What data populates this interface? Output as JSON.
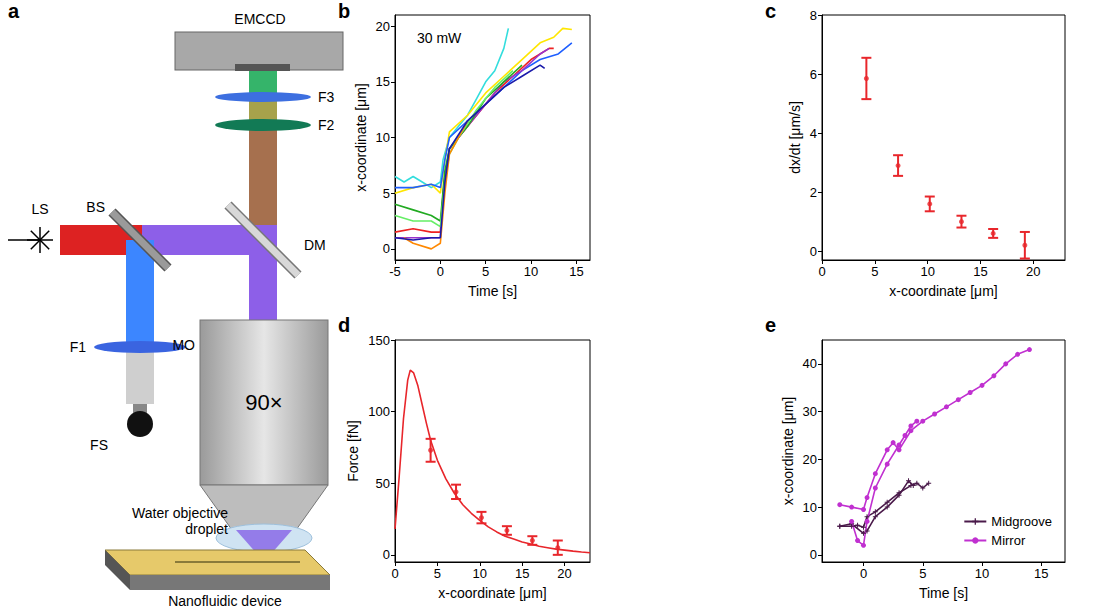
{
  "diagram": {
    "label": "a",
    "camera": "EMCCD",
    "filter_3": "F3",
    "filter_2": "F2",
    "light_source": "LS",
    "beam_splitter": "BS",
    "dichroic_mirror": "DM",
    "filter_1": "F1",
    "objective": "MO",
    "magnification": "90×",
    "field_source": "FS",
    "droplet": "Water objective droplet",
    "device": "Nanofluidic device"
  },
  "chart_data": [
    {
      "label": "b",
      "type": "line",
      "xlabel": "Time [s]",
      "ylabel": "x-coordinate [μm]",
      "xlim": [
        -5,
        16.5
      ],
      "ylim": [
        -1,
        21
      ],
      "xticks": [
        -5,
        0,
        5,
        10,
        15
      ],
      "yticks": [
        0,
        5,
        10,
        15,
        20
      ],
      "grid": false,
      "annotations": [
        "30 mW"
      ],
      "series": [
        {
          "color": "#33dddd",
          "x": [
            -5,
            -4,
            -3,
            -2,
            -1,
            0,
            0.3,
            1,
            2,
            3,
            4,
            5,
            6,
            7,
            7.5
          ],
          "values": [
            6.5,
            6,
            6.5,
            6,
            5.5,
            6,
            8,
            10,
            11,
            12,
            13.5,
            15,
            16,
            18,
            19.8
          ]
        },
        {
          "color": "#ffe600",
          "x": [
            -5,
            -3,
            -1,
            0,
            0.5,
            1,
            3,
            5,
            7,
            9,
            11,
            12.5,
            13.5,
            14.5
          ],
          "values": [
            5,
            5.5,
            5.8,
            5,
            8,
            10.5,
            12,
            14,
            15.5,
            17,
            18.5,
            19,
            19.8,
            19.7
          ]
        },
        {
          "color": "#1f5fff",
          "x": [
            -5,
            -3,
            -1,
            0,
            0.5,
            1,
            3,
            5,
            7,
            9,
            11,
            13,
            14.5
          ],
          "values": [
            5.5,
            5.5,
            5.8,
            5.5,
            8,
            10,
            11.5,
            13,
            14.5,
            16,
            17,
            17.5,
            18.5
          ]
        },
        {
          "color": "#ee2222",
          "x": [
            -5,
            -3,
            -1,
            0,
            0.3,
            1,
            2,
            4,
            6,
            8,
            10,
            12,
            12.5
          ],
          "values": [
            1.5,
            1.8,
            1.5,
            1.5,
            5,
            9,
            10,
            12,
            14,
            15.5,
            17,
            18,
            18
          ]
        },
        {
          "color": "#9933cc",
          "x": [
            -5,
            -3,
            -1,
            0,
            0.4,
            1,
            3,
            5,
            7,
            9,
            11,
            12
          ],
          "values": [
            1,
            1,
            1,
            1,
            6,
            9,
            11,
            13,
            15,
            16,
            17.5,
            18
          ]
        },
        {
          "color": "#22aa22",
          "x": [
            -5,
            -3,
            -1,
            0,
            0.5,
            1,
            3,
            5,
            7,
            9
          ],
          "values": [
            4,
            3.5,
            3,
            2.5,
            7,
            9,
            11,
            13.5,
            15,
            16.5
          ]
        },
        {
          "color": "#66ee66",
          "x": [
            -5,
            -3,
            -1,
            0,
            0.5,
            1,
            2,
            4,
            6,
            8
          ],
          "values": [
            3,
            2.5,
            2.5,
            2,
            6,
            8.5,
            10,
            12.5,
            14.5,
            16
          ]
        },
        {
          "color": "#ff8800",
          "x": [
            -4,
            -3,
            -1,
            0,
            0.5,
            1,
            2,
            3
          ],
          "values": [
            1,
            0.5,
            0,
            0.5,
            5,
            8.5,
            10,
            11.5
          ]
        },
        {
          "color": "#1a1aaa",
          "x": [
            -5,
            -3,
            -1,
            0,
            0.5,
            1,
            3,
            5,
            7,
            9,
            11,
            11.5
          ],
          "values": [
            1,
            0.8,
            1,
            1,
            6,
            9,
            11.5,
            13,
            14.5,
            15.5,
            16.5,
            16.2
          ]
        }
      ]
    },
    {
      "label": "c",
      "type": "scatter",
      "xlabel": "x-coordinate [μm]",
      "ylabel": "dx/dt [μm/s]",
      "xlim": [
        0,
        23
      ],
      "ylim": [
        -0.3,
        8
      ],
      "xticks": [
        0,
        5,
        10,
        15,
        20
      ],
      "yticks": [
        0,
        2,
        4,
        6,
        8
      ],
      "grid": false,
      "series": [
        {
          "color": "#e8262b",
          "marker": "circle",
          "x": [
            4.2,
            7.2,
            10.2,
            13.2,
            16.2,
            19.2
          ],
          "values": [
            5.85,
            2.9,
            1.6,
            1.0,
            0.6,
            0.2
          ],
          "errors": [
            0.7,
            0.35,
            0.25,
            0.2,
            0.15,
            0.45
          ]
        }
      ]
    },
    {
      "label": "d",
      "type": "line",
      "xlabel": "x-coordinate [μm]",
      "ylabel": "Force [fN]",
      "xlim": [
        0,
        23
      ],
      "ylim": [
        -5,
        150
      ],
      "xticks": [
        0,
        5,
        10,
        15,
        20
      ],
      "yticks": [
        0,
        50,
        100,
        150
      ],
      "grid": false,
      "series": [
        {
          "type": "line",
          "color": "#e8262b",
          "x": [
            0,
            0.5,
            1,
            1.5,
            1.8,
            2.2,
            2.7,
            3.2,
            3.7,
            4.2,
            5,
            6,
            7,
            8,
            9,
            10,
            11,
            12,
            13,
            14,
            15,
            16,
            17,
            18,
            19,
            20,
            21,
            22,
            23
          ],
          "values": [
            18,
            55,
            95,
            122,
            129,
            127,
            118,
            105,
            92,
            80,
            66,
            53,
            43,
            35,
            29,
            24,
            19.5,
            16,
            13,
            11,
            9,
            7.5,
            6,
            5,
            4,
            3.3,
            2.6,
            2,
            1.5
          ]
        },
        {
          "type": "scatter",
          "color": "#e8262b",
          "marker": "circle",
          "x": [
            4.2,
            7.2,
            10.2,
            13.2,
            16.2,
            19.2
          ],
          "values": [
            73,
            44,
            26,
            17,
            10,
            5
          ],
          "errors": [
            8,
            5,
            4,
            3,
            3,
            5
          ]
        }
      ]
    },
    {
      "label": "e",
      "type": "line",
      "xlabel": "Time [s]",
      "ylabel": "x-coordinate [μm]",
      "xlim": [
        -3.5,
        17
      ],
      "ylim": [
        -1.5,
        45
      ],
      "xticks": [
        0,
        5,
        10,
        15
      ],
      "yticks": [
        0,
        10,
        20,
        30,
        40
      ],
      "grid": false,
      "legend": "lower right",
      "series": [
        {
          "name": "Midgroove",
          "color": "#4a1a4a",
          "marker": "cross",
          "x": [
            -2,
            -1,
            -0.5,
            0,
            0.3,
            1,
            2,
            3,
            4,
            4.5,
            5,
            5.5
          ],
          "values": [
            6,
            6,
            6.2,
            5.8,
            8,
            9,
            11,
            13,
            14.5,
            15,
            14,
            15
          ]
        },
        {
          "name": "Midgroove",
          "color": "#4a1a4a",
          "marker": "cross",
          "x": [
            -2,
            -1,
            0,
            0.3,
            1,
            2,
            3,
            3.8,
            4.2
          ],
          "values": [
            6,
            6.5,
            4.5,
            5,
            8,
            10,
            12.5,
            15.5,
            14.5
          ]
        },
        {
          "name": "Mirror",
          "color": "#c030d0",
          "marker": "circle",
          "x": [
            -2,
            -1,
            0,
            0.3,
            1,
            2,
            2.5,
            3,
            4,
            5,
            6,
            7,
            8,
            9,
            10,
            11,
            12,
            13,
            14
          ],
          "values": [
            10.5,
            10,
            9.5,
            12,
            17,
            22,
            23.5,
            22,
            26,
            28,
            29.5,
            31,
            32.5,
            34,
            35.5,
            37.5,
            40,
            42,
            43
          ]
        },
        {
          "name": "Mirror",
          "color": "#c030d0",
          "marker": "circle",
          "x": [
            -1,
            -0.5,
            0,
            0.3,
            1,
            2,
            3,
            3.5,
            4,
            4.5
          ],
          "values": [
            7,
            3,
            2,
            7,
            14,
            19,
            23,
            25,
            27,
            28
          ]
        }
      ]
    }
  ]
}
